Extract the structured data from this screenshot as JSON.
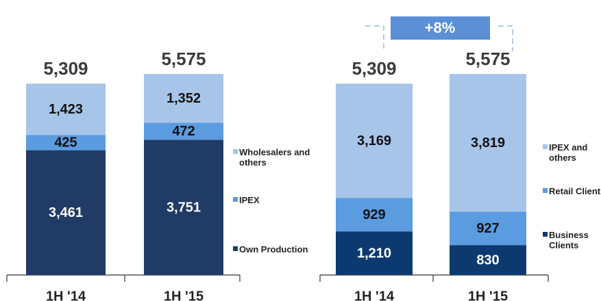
{
  "chart_data": [
    {
      "type": "bar",
      "stacked": true,
      "categories": [
        "1H '14",
        "1H '15"
      ],
      "series": [
        {
          "name": "Own Production",
          "color": "#1f3b66",
          "values": [
            3461,
            3751
          ],
          "value_labels": [
            "3,461",
            "3,751"
          ]
        },
        {
          "name": "IPEX",
          "color": "#5b9be0",
          "values": [
            425,
            472
          ]
        },
        {
          "name": "Wholesalers and others",
          "color": "#a7c5e8",
          "values": [
            1423,
            1352
          ],
          "value_labels": [
            "1,423",
            "1,352"
          ]
        }
      ],
      "totals": [
        5309,
        5575
      ],
      "total_labels": [
        "5,309",
        "5,575"
      ],
      "ylim": [
        0,
        7000
      ]
    },
    {
      "type": "bar",
      "stacked": true,
      "categories": [
        "1H '14",
        "1H '15"
      ],
      "series": [
        {
          "name": "Business Clients",
          "color": "#0c3a70",
          "values": [
            1210,
            830
          ],
          "value_labels": [
            "1,210",
            "830"
          ]
        },
        {
          "name": "Retail Clients",
          "color": "#5b9be0",
          "values": [
            929,
            927
          ]
        },
        {
          "name": "IPEX and others",
          "color": "#a7c5e8",
          "values": [
            3169,
            3819
          ],
          "value_labels": [
            "3,169",
            "3,819"
          ]
        }
      ],
      "totals": [
        5309,
        5575
      ],
      "total_labels": [
        "5,309",
        "5,575"
      ],
      "ylim": [
        0,
        7000
      ],
      "annotation": "+8%"
    }
  ]
}
